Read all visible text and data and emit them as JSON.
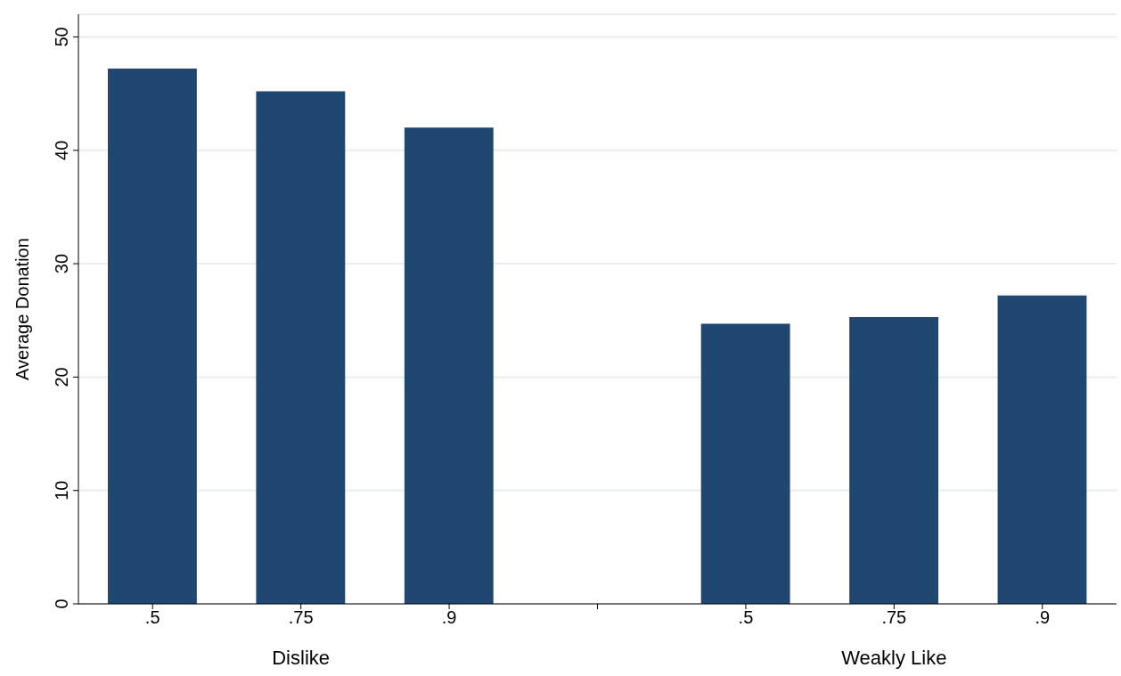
{
  "chart_data": {
    "type": "bar",
    "ylabel": "Average Donation",
    "categories": [
      ".5",
      ".75",
      ".9",
      null,
      ".5",
      ".75",
      ".9"
    ],
    "values": [
      47.2,
      45.2,
      42.0,
      null,
      24.7,
      25.3,
      27.2
    ],
    "color": "#1f4770",
    "ylim": [
      0,
      52
    ],
    "yticks": [
      0,
      10,
      20,
      30,
      40,
      50
    ],
    "grid": "y",
    "annotations": [
      "Dislike",
      "Weakly Like"
    ]
  }
}
